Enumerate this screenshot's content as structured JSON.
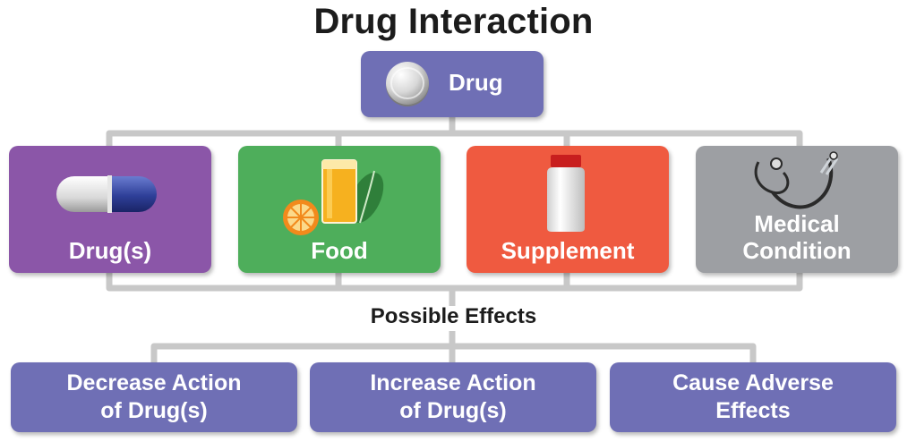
{
  "title": "Drug Interaction",
  "top_box": {
    "label": "Drug"
  },
  "categories": [
    {
      "label": "Drug(s)",
      "icon": "capsule-icon",
      "color": "#8b56a8"
    },
    {
      "label": "Food",
      "icon": "food-icon",
      "color": "#4eae5b"
    },
    {
      "label": "Supplement",
      "icon": "supplement-bottle-icon",
      "color": "#ef5a40"
    },
    {
      "label": "Medical\nCondition",
      "icon": "stethoscope-icon",
      "color": "#9d9fa3"
    }
  ],
  "subtitle": "Possible Effects",
  "effects": [
    {
      "label": "Decrease Action\nof Drug(s)"
    },
    {
      "label": "Increase Action\nof Drug(s)"
    },
    {
      "label": "Cause Adverse\nEffects"
    }
  ],
  "colors": {
    "box_blue": "#6f6fb5",
    "connector": "#c8c8c8"
  }
}
